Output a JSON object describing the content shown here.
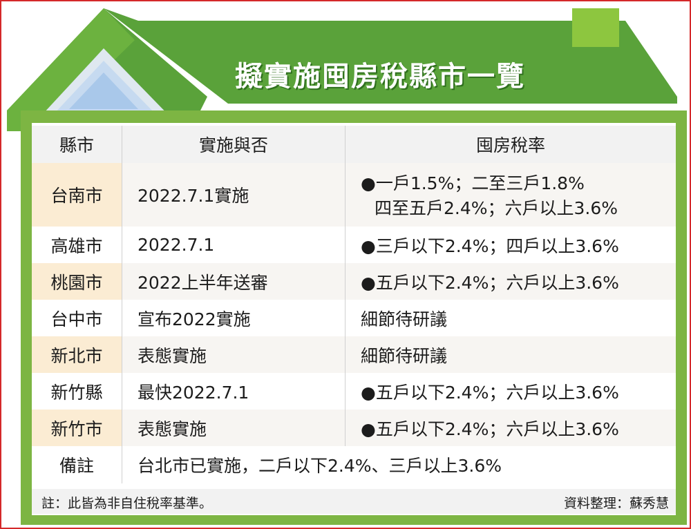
{
  "title": "擬實施囤房稅縣市一覽",
  "headers": [
    "縣市",
    "實施與否",
    "囤房稅率"
  ],
  "rows": [
    {
      "city": "台南市",
      "status": "2022.7.1實施",
      "rate_line1": "●一戶1.5%；二至三戶1.8%",
      "rate_line2": "四至五戶2.4%；六戶以上3.6%"
    },
    {
      "city": "高雄市",
      "status": "2022.7.1",
      "rate_line1": "●三戶以下2.4%；四戶以上3.6%"
    },
    {
      "city": "桃園市",
      "status": "2022上半年送審",
      "rate_line1": "●五戶以下2.4%；六戶以上3.6%"
    },
    {
      "city": "台中市",
      "status": "宣布2022實施",
      "rate_line1": "細節待研議"
    },
    {
      "city": "新北市",
      "status": "表態實施",
      "rate_line1": "細節待研議"
    },
    {
      "city": "新竹縣",
      "status": "最快2022.7.1",
      "rate_line1": "●五戶以下2.4%；六戶以上3.6%"
    },
    {
      "city": "新竹市",
      "status": "表態實施",
      "rate_line1": "●五戶以下2.4%；六戶以上3.6%"
    }
  ],
  "remark": {
    "label": "備註",
    "text": "台北市已實施，二戶以下2.4%、三戶以上3.6%"
  },
  "footnote": "註：此皆為非自住稅率基準。",
  "credit": "資料整理：蘇秀慧",
  "colors": {
    "roof_green": "#5aa23a",
    "house_green": "#7db543",
    "chimney": "#8dc63f",
    "highlight": "#fbecd3",
    "border": "#d4282a"
  }
}
